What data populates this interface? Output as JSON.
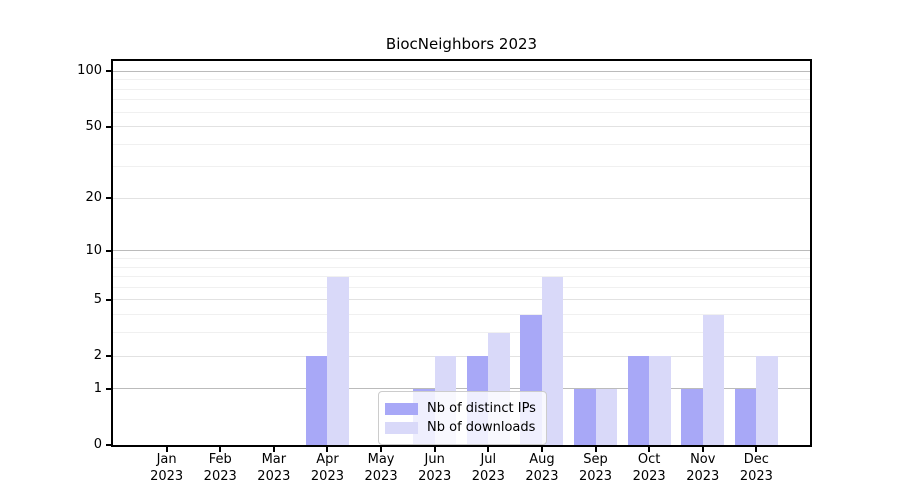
{
  "title": "BiocNeighbors 2023",
  "colors": {
    "distinct_ips_bar": "#a8a8f7",
    "downloads_bar": "#d9d9f9",
    "decade_gridline": "#bbbbbb",
    "labeled_gridline": "#e2e2e2",
    "minor_gridline": "#f0f0f0",
    "axis": "#000000"
  },
  "legend": {
    "items": [
      {
        "label": "Nb of distinct IPs"
      },
      {
        "label": "Nb of downloads"
      }
    ]
  },
  "chart_data": {
    "type": "bar",
    "title": "BiocNeighbors 2023",
    "categories": [
      "Jan 2023",
      "Feb 2023",
      "Mar 2023",
      "Apr 2023",
      "May 2023",
      "Jun 2023",
      "Jul 2023",
      "Aug 2023",
      "Sep 2023",
      "Oct 2023",
      "Nov 2023",
      "Dec 2023"
    ],
    "series": [
      {
        "name": "Nb of distinct IPs",
        "color": "#a8a8f7",
        "values": [
          0,
          0,
          0,
          2,
          0,
          1,
          2,
          4,
          1,
          2,
          1,
          1
        ]
      },
      {
        "name": "Nb of downloads",
        "color": "#d9d9f9",
        "values": [
          0,
          0,
          0,
          7,
          0,
          2,
          3,
          7,
          1,
          2,
          4,
          2
        ]
      }
    ],
    "xlabel": "",
    "ylabel": "",
    "yscale": "log1p",
    "ylim": [
      0,
      115
    ],
    "yticks": [
      0,
      1,
      2,
      5,
      10,
      20,
      50,
      100
    ],
    "decade_yticks": [
      1,
      10,
      100
    ],
    "minor_yticks": [
      3,
      4,
      6,
      7,
      8,
      9,
      30,
      40,
      60,
      70,
      80,
      90
    ],
    "grid": true,
    "legend_position": "lower center"
  }
}
